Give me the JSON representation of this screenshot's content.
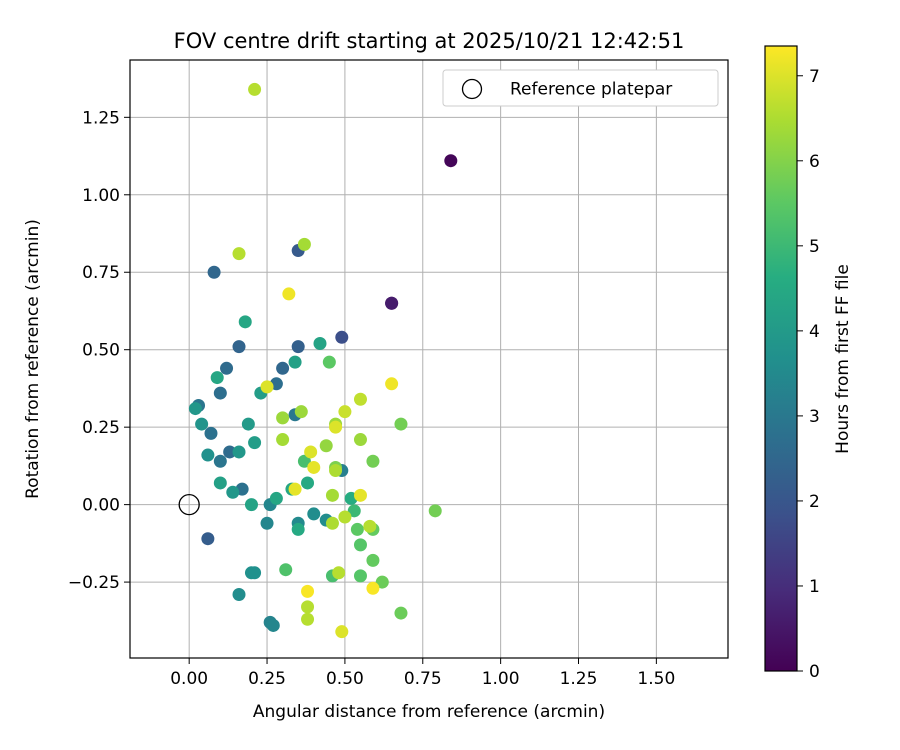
{
  "chart_data": {
    "type": "scatter",
    "title": "FOV centre drift starting at 2025/10/21 12:42:51",
    "xlabel": "Angular distance from reference (arcmin)",
    "ylabel": "Rotation from reference (arcmin)",
    "xlim": [
      -0.19,
      1.73
    ],
    "ylim": [
      -0.495,
      1.435
    ],
    "xticks": [
      0.0,
      0.25,
      0.5,
      0.75,
      1.0,
      1.25,
      1.5
    ],
    "xtick_labels": [
      "0.00",
      "0.25",
      "0.50",
      "0.75",
      "1.00",
      "1.25",
      "1.50"
    ],
    "yticks": [
      -0.25,
      0.0,
      0.25,
      0.5,
      0.75,
      1.0,
      1.25
    ],
    "ytick_labels": [
      "−0.25",
      "0.00",
      "0.25",
      "0.50",
      "0.75",
      "1.00",
      "1.25"
    ],
    "grid": true,
    "legend": {
      "position": "top-right",
      "entries": [
        "Reference platepar"
      ]
    },
    "reference_point": {
      "x": 0.0,
      "y": 0.0,
      "label": "Reference platepar"
    },
    "colorbar": {
      "label": "Hours from first FF file",
      "range": [
        0,
        7.35
      ],
      "ticks": [
        0,
        1,
        2,
        3,
        4,
        5,
        6,
        7
      ],
      "tick_labels": [
        "0",
        "1",
        "2",
        "3",
        "4",
        "5",
        "6",
        "7"
      ],
      "colormap": "viridis"
    },
    "points": [
      {
        "x": 0.84,
        "y": 1.11,
        "t": 0.1
      },
      {
        "x": 0.65,
        "y": 0.65,
        "t": 0.4
      },
      {
        "x": 0.65,
        "y": 0.65,
        "t": 0.6
      },
      {
        "x": 0.49,
        "y": 0.54,
        "t": 1.8
      },
      {
        "x": 0.35,
        "y": 0.82,
        "t": 2.1
      },
      {
        "x": 0.08,
        "y": 0.75,
        "t": 2.5
      },
      {
        "x": 0.06,
        "y": -0.11,
        "t": 2.2
      },
      {
        "x": 0.35,
        "y": 0.51,
        "t": 2.3
      },
      {
        "x": 0.16,
        "y": 0.51,
        "t": 2.4
      },
      {
        "x": 0.3,
        "y": 0.44,
        "t": 2.5
      },
      {
        "x": 0.12,
        "y": 0.44,
        "t": 2.6
      },
      {
        "x": 0.1,
        "y": 0.36,
        "t": 2.7
      },
      {
        "x": 0.28,
        "y": 0.39,
        "t": 2.7
      },
      {
        "x": 0.07,
        "y": 0.23,
        "t": 2.8
      },
      {
        "x": 0.13,
        "y": 0.17,
        "t": 2.6
      },
      {
        "x": 0.03,
        "y": 0.32,
        "t": 2.9
      },
      {
        "x": 0.1,
        "y": 0.14,
        "t": 2.9
      },
      {
        "x": 0.17,
        "y": 0.05,
        "t": 2.8
      },
      {
        "x": 0.34,
        "y": 0.29,
        "t": 3.0
      },
      {
        "x": 0.49,
        "y": 0.11,
        "t": 3.2
      },
      {
        "x": 0.26,
        "y": -0.38,
        "t": 3.3
      },
      {
        "x": 0.27,
        "y": -0.39,
        "t": 3.4
      },
      {
        "x": 0.25,
        "y": -0.06,
        "t": 3.4
      },
      {
        "x": 0.26,
        "y": 0.0,
        "t": 3.4
      },
      {
        "x": 0.35,
        "y": -0.06,
        "t": 3.5
      },
      {
        "x": 0.4,
        "y": -0.03,
        "t": 3.6
      },
      {
        "x": 0.44,
        "y": -0.05,
        "t": 3.6
      },
      {
        "x": 0.16,
        "y": -0.29,
        "t": 3.6
      },
      {
        "x": 0.2,
        "y": -0.22,
        "t": 3.7
      },
      {
        "x": 0.21,
        "y": -0.22,
        "t": 3.7
      },
      {
        "x": 0.06,
        "y": 0.16,
        "t": 3.7
      },
      {
        "x": 0.04,
        "y": 0.26,
        "t": 3.8
      },
      {
        "x": 0.02,
        "y": 0.31,
        "t": 3.9
      },
      {
        "x": 0.14,
        "y": 0.04,
        "t": 3.9
      },
      {
        "x": 0.16,
        "y": 0.17,
        "t": 3.9
      },
      {
        "x": 0.19,
        "y": 0.26,
        "t": 4.0
      },
      {
        "x": 0.21,
        "y": 0.2,
        "t": 4.1
      },
      {
        "x": 0.23,
        "y": 0.36,
        "t": 4.1
      },
      {
        "x": 0.34,
        "y": 0.46,
        "t": 4.2
      },
      {
        "x": 0.42,
        "y": 0.52,
        "t": 4.3
      },
      {
        "x": 0.18,
        "y": 0.59,
        "t": 4.4
      },
      {
        "x": 0.09,
        "y": 0.41,
        "t": 4.4
      },
      {
        "x": 0.1,
        "y": 0.07,
        "t": 4.2
      },
      {
        "x": 0.2,
        "y": 0.0,
        "t": 4.3
      },
      {
        "x": 0.28,
        "y": 0.02,
        "t": 4.4
      },
      {
        "x": 0.33,
        "y": 0.05,
        "t": 4.4
      },
      {
        "x": 0.38,
        "y": 0.07,
        "t": 4.5
      },
      {
        "x": 0.35,
        "y": -0.08,
        "t": 4.5
      },
      {
        "x": 0.52,
        "y": 0.02,
        "t": 4.6
      },
      {
        "x": 0.53,
        "y": -0.02,
        "t": 5.0
      },
      {
        "x": 0.37,
        "y": 0.14,
        "t": 5.2
      },
      {
        "x": 0.45,
        "y": 0.46,
        "t": 5.5
      },
      {
        "x": 0.31,
        "y": -0.21,
        "t": 5.3
      },
      {
        "x": 0.46,
        "y": -0.23,
        "t": 5.2
      },
      {
        "x": 0.55,
        "y": -0.23,
        "t": 5.4
      },
      {
        "x": 0.55,
        "y": -0.13,
        "t": 5.4
      },
      {
        "x": 0.54,
        "y": -0.08,
        "t": 5.5
      },
      {
        "x": 0.59,
        "y": -0.08,
        "t": 5.6
      },
      {
        "x": 0.59,
        "y": -0.18,
        "t": 5.6
      },
      {
        "x": 0.62,
        "y": -0.25,
        "t": 5.7
      },
      {
        "x": 0.68,
        "y": -0.35,
        "t": 5.7
      },
      {
        "x": 0.68,
        "y": 0.26,
        "t": 5.8
      },
      {
        "x": 0.59,
        "y": 0.14,
        "t": 5.8
      },
      {
        "x": 0.79,
        "y": -0.02,
        "t": 5.8
      },
      {
        "x": 0.47,
        "y": 0.12,
        "t": 5.9
      },
      {
        "x": 0.44,
        "y": 0.19,
        "t": 6.2
      },
      {
        "x": 0.55,
        "y": 0.21,
        "t": 6.3
      },
      {
        "x": 0.47,
        "y": 0.26,
        "t": 6.3
      },
      {
        "x": 0.36,
        "y": 0.3,
        "t": 6.3
      },
      {
        "x": 0.3,
        "y": 0.28,
        "t": 6.3
      },
      {
        "x": 0.3,
        "y": 0.21,
        "t": 6.4
      },
      {
        "x": 0.46,
        "y": 0.03,
        "t": 6.4
      },
      {
        "x": 0.47,
        "y": 0.11,
        "t": 6.5
      },
      {
        "x": 0.46,
        "y": -0.06,
        "t": 6.5
      },
      {
        "x": 0.5,
        "y": -0.04,
        "t": 6.6
      },
      {
        "x": 0.58,
        "y": -0.07,
        "t": 6.6
      },
      {
        "x": 0.38,
        "y": -0.33,
        "t": 6.6
      },
      {
        "x": 0.38,
        "y": -0.37,
        "t": 6.6
      },
      {
        "x": 0.48,
        "y": -0.22,
        "t": 6.6
      },
      {
        "x": 0.55,
        "y": 0.34,
        "t": 6.7
      },
      {
        "x": 0.5,
        "y": 0.3,
        "t": 6.8
      },
      {
        "x": 0.37,
        "y": 0.84,
        "t": 6.4
      },
      {
        "x": 0.16,
        "y": 0.81,
        "t": 6.6
      },
      {
        "x": 0.21,
        "y": 1.34,
        "t": 6.6
      },
      {
        "x": 0.25,
        "y": 0.38,
        "t": 7.0
      },
      {
        "x": 0.32,
        "y": 0.68,
        "t": 7.2
      },
      {
        "x": 0.47,
        "y": 0.25,
        "t": 7.0
      },
      {
        "x": 0.39,
        "y": 0.17,
        "t": 7.0
      },
      {
        "x": 0.4,
        "y": 0.12,
        "t": 7.1
      },
      {
        "x": 0.34,
        "y": 0.05,
        "t": 7.1
      },
      {
        "x": 0.55,
        "y": 0.03,
        "t": 7.1
      },
      {
        "x": 0.65,
        "y": 0.39,
        "t": 7.2
      },
      {
        "x": 0.38,
        "y": -0.28,
        "t": 7.3
      },
      {
        "x": 0.59,
        "y": -0.27,
        "t": 7.3
      },
      {
        "x": 0.49,
        "y": -0.41,
        "t": 7.0
      }
    ]
  }
}
